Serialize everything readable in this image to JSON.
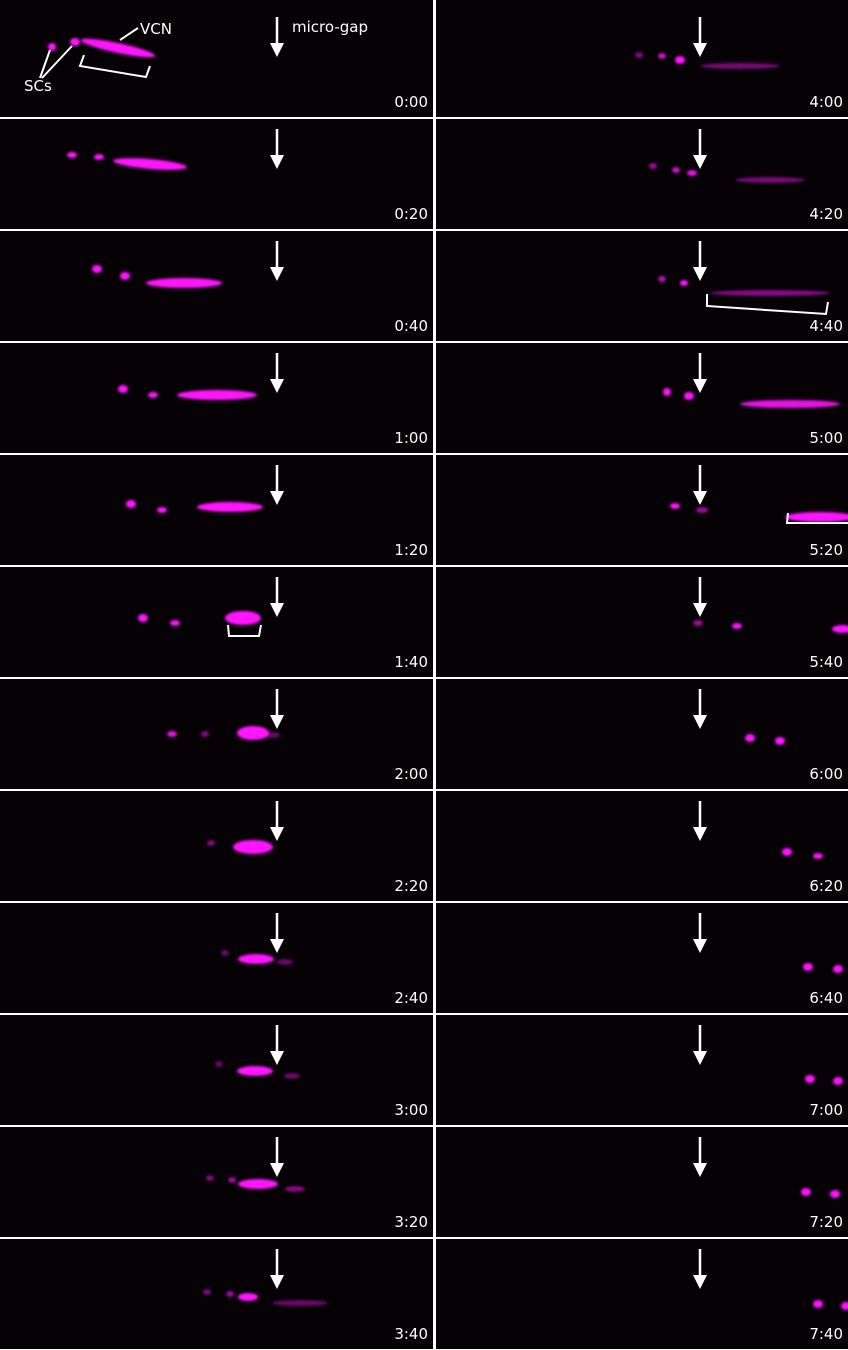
{
  "annotations": {
    "vcn": "VCN",
    "scs": "SCs",
    "micro_gap": "micro-gap"
  },
  "panels": [
    {
      "time": "0:00"
    },
    {
      "time": "0:20"
    },
    {
      "time": "0:40"
    },
    {
      "time": "1:00"
    },
    {
      "time": "1:20"
    },
    {
      "time": "1:40"
    },
    {
      "time": "2:00"
    },
    {
      "time": "2:20"
    },
    {
      "time": "2:40"
    },
    {
      "time": "3:00"
    },
    {
      "time": "3:20"
    },
    {
      "time": "3:40"
    },
    {
      "time": "4:00"
    },
    {
      "time": "4:20"
    },
    {
      "time": "4:40"
    },
    {
      "time": "5:00"
    },
    {
      "time": "5:20"
    },
    {
      "time": "5:40"
    },
    {
      "time": "6:00"
    },
    {
      "time": "6:20"
    },
    {
      "time": "6:40"
    },
    {
      "time": "7:00"
    },
    {
      "time": "7:20"
    },
    {
      "time": "7:40"
    }
  ]
}
